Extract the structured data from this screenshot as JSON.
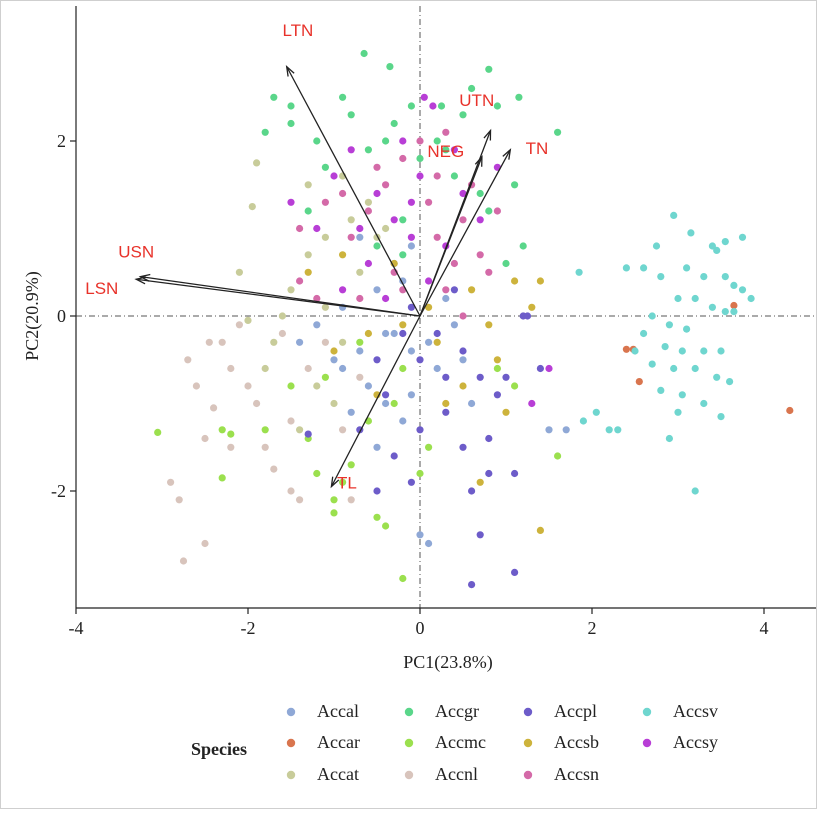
{
  "chart_data": {
    "type": "scatter",
    "title": "",
    "xlabel": "PC1(23.8%)",
    "ylabel": "PC2(20.9%)",
    "xlim": [
      -4,
      4.6
    ],
    "ylim": [
      -3.4,
      3.4
    ],
    "xticks": [
      -4,
      -2,
      0,
      2,
      4
    ],
    "yticks": [
      -2,
      0,
      2
    ],
    "grid": false,
    "reference_lines": {
      "x": 0,
      "y": 0,
      "style": "dash-dot"
    },
    "legend_title": "Species",
    "legend_position": "bottom",
    "colors": {
      "Accal": "#8fa8d6",
      "Accar": "#d9754e",
      "Accat": "#c8cc9a",
      "Accgr": "#5ad68a",
      "Accmc": "#9be04e",
      "Accnl": "#d8c4bc",
      "Accpl": "#6d5cc9",
      "Accsb": "#cdb33c",
      "Accsn": "#d46aa8",
      "Accsv": "#6fd6cf",
      "Accsy": "#b83ed6",
      "arrow": "#222222",
      "label": "#e8322a"
    },
    "loadings": [
      {
        "name": "LTN",
        "x": -1.55,
        "y": 2.85,
        "lx": -1.42,
        "ly": 3.2
      },
      {
        "name": "UTN",
        "x": 0.82,
        "y": 2.12,
        "lx": 0.66,
        "ly": 2.4
      },
      {
        "name": "NEG",
        "x": 0.72,
        "y": 1.82,
        "lx": 0.3,
        "ly": 1.82
      },
      {
        "name": "TN",
        "x": 1.05,
        "y": 1.9,
        "lx": 1.36,
        "ly": 1.85
      },
      {
        "name": "USN",
        "x": -3.25,
        "y": 0.45,
        "lx": -3.3,
        "ly": 0.67
      },
      {
        "name": "LSN",
        "x": -3.3,
        "y": 0.42,
        "lx": -3.7,
        "ly": 0.25
      },
      {
        "name": "TL",
        "x": -1.03,
        "y": -1.95,
        "lx": -0.85,
        "ly": -1.97
      }
    ],
    "series": [
      {
        "name": "Accal",
        "points": [
          [
            -0.5,
            0.3
          ],
          [
            -0.3,
            -0.2
          ],
          [
            -0.7,
            -0.4
          ],
          [
            0.2,
            -0.6
          ],
          [
            -0.1,
            -0.9
          ],
          [
            -0.9,
            0.1
          ],
          [
            -0.6,
            -0.8
          ],
          [
            0.1,
            -0.3
          ],
          [
            -0.2,
            -1.2
          ],
          [
            -0.5,
            -1.5
          ],
          [
            0.4,
            -0.1
          ],
          [
            -1.0,
            -0.5
          ],
          [
            0.0,
            -2.5
          ],
          [
            0.1,
            -2.6
          ],
          [
            -0.3,
            0.6
          ],
          [
            -0.8,
            -1.1
          ],
          [
            -0.4,
            -0.2
          ],
          [
            0.3,
            0.2
          ],
          [
            -1.2,
            -0.1
          ],
          [
            -0.2,
            0.4
          ],
          [
            0.6,
            -1.0
          ],
          [
            -0.7,
            0.9
          ],
          [
            1.5,
            -1.3
          ],
          [
            1.7,
            -1.3
          ],
          [
            -0.1,
            0.8
          ],
          [
            -0.4,
            -1.0
          ],
          [
            -0.9,
            -0.6
          ],
          [
            0.5,
            -0.5
          ],
          [
            -1.4,
            -0.3
          ],
          [
            -0.1,
            -0.4
          ]
        ]
      },
      {
        "name": "Accar",
        "points": [
          [
            2.4,
            -0.38
          ],
          [
            2.48,
            -0.38
          ],
          [
            2.55,
            -0.75
          ],
          [
            3.65,
            0.12
          ],
          [
            4.3,
            -1.08
          ]
        ]
      },
      {
        "name": "Accat",
        "points": [
          [
            -1.9,
            1.75
          ],
          [
            -1.95,
            1.25
          ],
          [
            -1.5,
            0.3
          ],
          [
            -1.7,
            -0.3
          ],
          [
            -2.0,
            -0.05
          ],
          [
            -1.3,
            0.7
          ],
          [
            -1.1,
            0.9
          ],
          [
            -0.9,
            1.6
          ],
          [
            -0.9,
            -0.3
          ],
          [
            -1.2,
            -0.8
          ],
          [
            -0.7,
            0.5
          ],
          [
            -1.6,
            0.0
          ],
          [
            -1.8,
            -0.6
          ],
          [
            -0.5,
            0.9
          ],
          [
            -1.4,
            -1.3
          ],
          [
            -0.6,
            1.3
          ],
          [
            -1.1,
            0.1
          ],
          [
            -2.1,
            0.5
          ],
          [
            -0.8,
            1.1
          ],
          [
            -1.3,
            1.5
          ],
          [
            -1.0,
            -1.0
          ],
          [
            -0.4,
            1.0
          ]
        ]
      },
      {
        "name": "Accgr",
        "points": [
          [
            -0.65,
            3.0
          ],
          [
            -0.35,
            2.85
          ],
          [
            0.8,
            2.82
          ],
          [
            0.6,
            2.6
          ],
          [
            -0.3,
            2.2
          ],
          [
            0.2,
            2.0
          ],
          [
            0.5,
            2.3
          ],
          [
            0.9,
            2.4
          ],
          [
            1.15,
            2.5
          ],
          [
            1.6,
            2.1
          ],
          [
            1.1,
            1.5
          ],
          [
            1.0,
            0.6
          ],
          [
            1.2,
            0.8
          ],
          [
            0.7,
            1.4
          ],
          [
            0.3,
            1.9
          ],
          [
            -0.1,
            2.4
          ],
          [
            -0.8,
            2.3
          ],
          [
            -1.2,
            2.0
          ],
          [
            -1.5,
            2.4
          ],
          [
            -1.8,
            2.1
          ],
          [
            -1.5,
            2.2
          ],
          [
            -1.7,
            2.5
          ],
          [
            -0.2,
            1.1
          ],
          [
            0.0,
            1.8
          ],
          [
            -0.6,
            1.9
          ],
          [
            -0.9,
            2.5
          ],
          [
            -1.1,
            1.7
          ],
          [
            -0.5,
            0.8
          ],
          [
            -1.3,
            1.2
          ],
          [
            -0.2,
            0.7
          ],
          [
            0.4,
            1.6
          ],
          [
            0.25,
            2.4
          ],
          [
            -0.4,
            2.0
          ],
          [
            0.8,
            1.2
          ]
        ]
      },
      {
        "name": "Accmc",
        "points": [
          [
            -3.05,
            -1.33
          ],
          [
            -2.3,
            -1.3
          ],
          [
            -2.2,
            -1.35
          ],
          [
            -2.3,
            -1.85
          ],
          [
            -1.8,
            -1.3
          ],
          [
            -1.5,
            -0.8
          ],
          [
            -1.3,
            -1.4
          ],
          [
            -1.0,
            -2.1
          ],
          [
            -1.0,
            -2.25
          ],
          [
            -1.2,
            -1.8
          ],
          [
            -0.8,
            -1.7
          ],
          [
            -0.6,
            -1.2
          ],
          [
            -0.5,
            -2.3
          ],
          [
            -0.4,
            -2.4
          ],
          [
            -0.9,
            -1.9
          ],
          [
            -0.3,
            -1.0
          ],
          [
            -0.2,
            -0.6
          ],
          [
            0.1,
            -1.5
          ],
          [
            0.0,
            -1.8
          ],
          [
            -0.2,
            -3.0
          ],
          [
            1.6,
            -1.6
          ],
          [
            1.1,
            -0.8
          ],
          [
            0.9,
            -0.6
          ],
          [
            -0.7,
            -0.3
          ],
          [
            -1.1,
            -0.7
          ]
        ]
      },
      {
        "name": "Accnl",
        "points": [
          [
            -2.75,
            -2.8
          ],
          [
            -2.8,
            -2.1
          ],
          [
            -2.5,
            -1.4
          ],
          [
            -2.4,
            -1.05
          ],
          [
            -2.2,
            -0.6
          ],
          [
            -2.3,
            -0.3
          ],
          [
            -2.1,
            -0.1
          ],
          [
            -2.0,
            -0.8
          ],
          [
            -1.9,
            -1.0
          ],
          [
            -1.8,
            -1.5
          ],
          [
            -1.7,
            -1.75
          ],
          [
            -1.5,
            -1.2
          ],
          [
            -1.5,
            -2.0
          ],
          [
            -1.4,
            -2.1
          ],
          [
            -2.7,
            -0.5
          ],
          [
            -2.6,
            -0.8
          ],
          [
            -2.2,
            -1.5
          ],
          [
            -2.45,
            -0.3
          ],
          [
            -1.3,
            -0.6
          ],
          [
            -1.1,
            -0.3
          ],
          [
            -0.9,
            -1.3
          ],
          [
            -0.8,
            -2.1
          ],
          [
            -0.7,
            -0.7
          ],
          [
            -2.9,
            -1.9
          ],
          [
            -1.6,
            -0.2
          ],
          [
            -2.5,
            -2.6
          ]
        ]
      },
      {
        "name": "Accpl",
        "points": [
          [
            -0.1,
            0.1
          ],
          [
            0.2,
            -0.2
          ],
          [
            0.5,
            -0.4
          ],
          [
            0.7,
            -0.7
          ],
          [
            0.9,
            -0.9
          ],
          [
            1.0,
            -0.7
          ],
          [
            1.2,
            0.0
          ],
          [
            1.25,
            0.0
          ],
          [
            1.4,
            -0.6
          ],
          [
            0.8,
            -1.4
          ],
          [
            0.5,
            -1.5
          ],
          [
            0.3,
            -1.1
          ],
          [
            0.0,
            -1.3
          ],
          [
            -0.3,
            -1.6
          ],
          [
            -0.5,
            -2.0
          ],
          [
            -0.7,
            -1.3
          ],
          [
            -1.3,
            -1.35
          ],
          [
            -0.5,
            -0.5
          ],
          [
            0.3,
            -0.7
          ],
          [
            0.6,
            -2.0
          ],
          [
            1.1,
            -1.8
          ],
          [
            1.1,
            -2.93
          ],
          [
            0.6,
            -3.07
          ],
          [
            0.0,
            -0.5
          ],
          [
            -0.2,
            -0.2
          ],
          [
            0.4,
            0.3
          ],
          [
            -0.4,
            -0.9
          ],
          [
            0.8,
            -1.8
          ],
          [
            -0.1,
            -1.9
          ],
          [
            0.7,
            -2.5
          ]
        ]
      },
      {
        "name": "Accsb",
        "points": [
          [
            1.4,
            -2.45
          ],
          [
            1.0,
            -1.1
          ],
          [
            0.5,
            -0.8
          ],
          [
            0.2,
            -0.3
          ],
          [
            0.8,
            -0.1
          ],
          [
            1.1,
            0.4
          ],
          [
            1.4,
            0.4
          ],
          [
            0.6,
            0.3
          ],
          [
            0.1,
            0.1
          ],
          [
            -0.6,
            -0.2
          ],
          [
            -1.0,
            -0.4
          ],
          [
            -1.3,
            0.5
          ],
          [
            -0.9,
            0.7
          ],
          [
            -0.3,
            0.6
          ],
          [
            0.3,
            -1.0
          ],
          [
            -0.5,
            -0.9
          ],
          [
            0.7,
            -1.9
          ],
          [
            0.9,
            -0.5
          ],
          [
            -0.2,
            -0.1
          ],
          [
            1.3,
            0.1
          ]
        ]
      },
      {
        "name": "Accsn",
        "points": [
          [
            0.3,
            2.1
          ],
          [
            -0.2,
            1.8
          ],
          [
            0.0,
            2.0
          ],
          [
            0.6,
            1.5
          ],
          [
            0.9,
            1.2
          ],
          [
            0.7,
            0.7
          ],
          [
            0.4,
            0.6
          ],
          [
            0.2,
            0.9
          ],
          [
            -0.4,
            1.5
          ],
          [
            -0.6,
            1.2
          ],
          [
            -0.8,
            0.9
          ],
          [
            -0.9,
            1.4
          ],
          [
            -1.1,
            1.3
          ],
          [
            -0.3,
            0.5
          ],
          [
            0.5,
            1.1
          ],
          [
            -0.5,
            1.7
          ],
          [
            0.1,
            1.3
          ],
          [
            0.3,
            0.3
          ],
          [
            -1.4,
            0.4
          ],
          [
            -1.2,
            0.2
          ],
          [
            -0.7,
            0.2
          ],
          [
            0.8,
            0.5
          ],
          [
            -1.4,
            1.0
          ],
          [
            0.2,
            1.6
          ],
          [
            -0.2,
            0.3
          ],
          [
            0.5,
            0.0
          ]
        ]
      },
      {
        "name": "Accsv",
        "points": [
          [
            2.95,
            1.15
          ],
          [
            3.15,
            0.95
          ],
          [
            3.4,
            0.8
          ],
          [
            3.55,
            0.85
          ],
          [
            3.75,
            0.9
          ],
          [
            3.45,
            0.75
          ],
          [
            2.75,
            0.8
          ],
          [
            2.6,
            0.55
          ],
          [
            2.8,
            0.45
          ],
          [
            3.1,
            0.55
          ],
          [
            3.3,
            0.45
          ],
          [
            3.55,
            0.45
          ],
          [
            3.65,
            0.35
          ],
          [
            3.75,
            0.3
          ],
          [
            3.85,
            0.2
          ],
          [
            3.0,
            0.2
          ],
          [
            3.2,
            0.2
          ],
          [
            3.4,
            0.1
          ],
          [
            3.55,
            0.05
          ],
          [
            2.7,
            0.0
          ],
          [
            2.9,
            -0.1
          ],
          [
            3.1,
            -0.15
          ],
          [
            2.6,
            -0.2
          ],
          [
            2.85,
            -0.35
          ],
          [
            3.05,
            -0.4
          ],
          [
            3.3,
            -0.4
          ],
          [
            3.5,
            -0.4
          ],
          [
            2.7,
            -0.55
          ],
          [
            2.95,
            -0.6
          ],
          [
            3.2,
            -0.6
          ],
          [
            3.45,
            -0.7
          ],
          [
            3.6,
            -0.75
          ],
          [
            2.8,
            -0.85
          ],
          [
            3.05,
            -0.9
          ],
          [
            3.3,
            -1.0
          ],
          [
            1.85,
            0.5
          ],
          [
            2.05,
            -1.1
          ],
          [
            2.2,
            -1.3
          ],
          [
            1.9,
            -1.2
          ],
          [
            2.3,
            -1.3
          ],
          [
            2.9,
            -1.4
          ],
          [
            3.2,
            -2.0
          ],
          [
            3.5,
            -1.15
          ],
          [
            3.0,
            -1.1
          ],
          [
            2.4,
            0.55
          ],
          [
            2.5,
            -0.4
          ],
          [
            3.65,
            0.05
          ]
        ]
      },
      {
        "name": "Accsy",
        "points": [
          [
            0.05,
            2.5
          ],
          [
            0.15,
            2.4
          ],
          [
            -0.2,
            2.0
          ],
          [
            0.0,
            1.6
          ],
          [
            0.4,
            1.9
          ],
          [
            0.7,
            1.1
          ],
          [
            0.3,
            0.8
          ],
          [
            -0.1,
            0.9
          ],
          [
            -0.5,
            1.4
          ],
          [
            -0.7,
            1.0
          ],
          [
            -1.0,
            1.6
          ],
          [
            -1.2,
            1.0
          ],
          [
            -1.5,
            1.3
          ],
          [
            0.9,
            1.7
          ],
          [
            0.5,
            1.4
          ],
          [
            -0.3,
            1.1
          ],
          [
            -0.6,
            0.6
          ],
          [
            0.1,
            0.4
          ],
          [
            1.5,
            -0.6
          ],
          [
            1.3,
            -1.0
          ],
          [
            -0.9,
            0.3
          ],
          [
            -0.4,
            0.2
          ],
          [
            -0.8,
            1.9
          ],
          [
            -0.1,
            1.3
          ]
        ]
      }
    ]
  }
}
